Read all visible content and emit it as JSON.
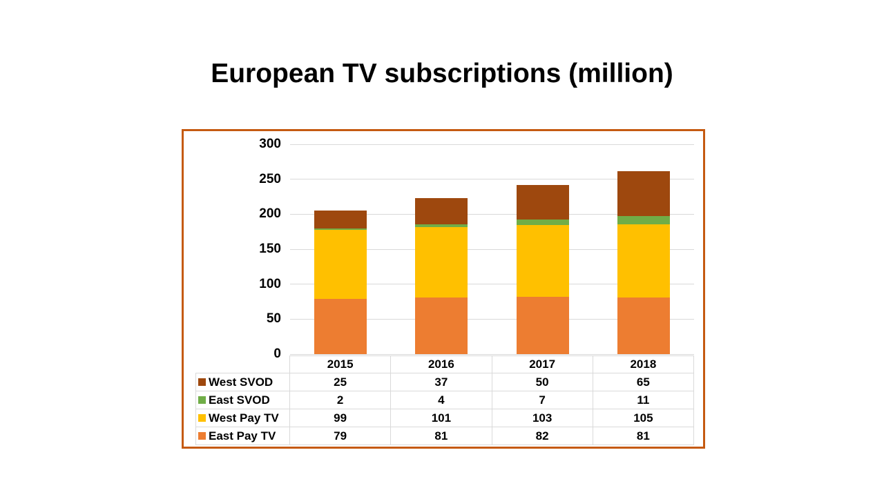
{
  "title": "European TV subscriptions (million)",
  "chart_data": {
    "type": "bar",
    "stacked": true,
    "title": "European TV subscriptions (million)",
    "categories": [
      "2015",
      "2016",
      "2017",
      "2018"
    ],
    "series": [
      {
        "name": "West SVOD",
        "color": "#9E480E",
        "values": [
          25,
          37,
          50,
          65
        ]
      },
      {
        "name": "East SVOD",
        "color": "#70AD47",
        "values": [
          2,
          4,
          7,
          11
        ]
      },
      {
        "name": "West Pay TV",
        "color": "#FFC000",
        "values": [
          99,
          101,
          103,
          105
        ]
      },
      {
        "name": "East Pay TV",
        "color": "#ED7D31",
        "values": [
          79,
          81,
          82,
          81
        ]
      }
    ],
    "stack_order_bottom_to_top": [
      "East Pay TV",
      "West Pay TV",
      "East SVOD",
      "West SVOD"
    ],
    "totals": [
      205,
      223,
      242,
      262
    ],
    "xlabel": "",
    "ylabel": "",
    "ylim": [
      0,
      300
    ],
    "yticks": [
      0,
      50,
      100,
      150,
      200,
      250,
      300
    ],
    "grid": true,
    "legend_position": "table-below-left-column",
    "frame_border_color": "#C55A11",
    "gridline_color": "#D9D9D9",
    "table_border_color": "#D9D9D9"
  }
}
